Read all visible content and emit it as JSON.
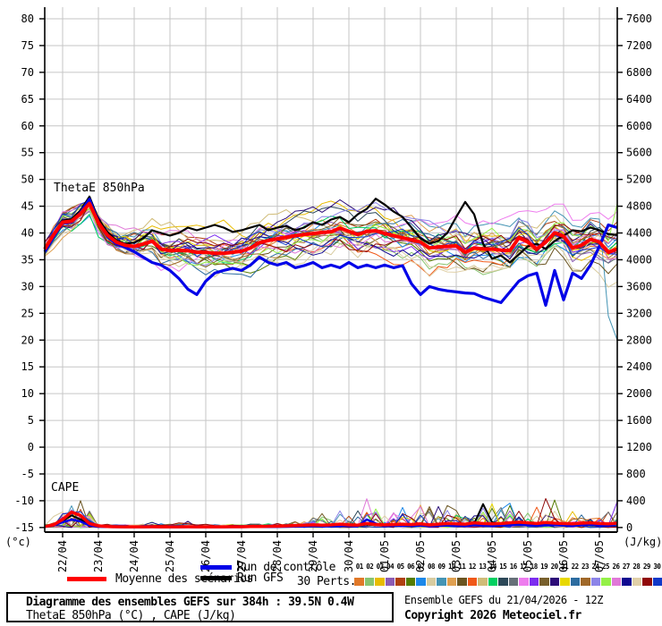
{
  "chart": {
    "thetae_label": "ThetaE 850hPa",
    "cape_label": "CAPE",
    "left_unit": "(°c)",
    "right_unit": "(J/kg)",
    "left_ticks": [
      80,
      75,
      70,
      65,
      60,
      55,
      50,
      45,
      40,
      35,
      30,
      25,
      20,
      15,
      10,
      5,
      0,
      -5,
      -10,
      -15
    ],
    "right_ticks": [
      7600,
      7200,
      6800,
      6400,
      6000,
      5600,
      5200,
      4800,
      4400,
      4000,
      3600,
      3200,
      2800,
      2400,
      2000,
      1600,
      1200,
      800,
      400,
      0
    ],
    "x_labels": [
      "22/04",
      "23/04",
      "24/04",
      "25/04",
      "26/04",
      "27/04",
      "28/04",
      "29/04",
      "30/04",
      "01/05",
      "02/05",
      "03/05",
      "04/05",
      "05/05",
      "06/05",
      "07/05"
    ]
  },
  "chart_data": {
    "type": "line",
    "x_span_hours": 384,
    "x_step_hours": 6,
    "left_axis": {
      "label": "(°c)",
      "min": -15,
      "max": 80,
      "step": 5
    },
    "right_axis": {
      "label": "(J/kg)",
      "min": 0,
      "max": 7600,
      "step": 400
    },
    "series": [
      {
        "name": "Moyenne des scénarios",
        "color": "#ff0000",
        "axis": "left",
        "values": [
          37,
          39.7,
          42,
          42.2,
          43.6,
          45.5,
          41.9,
          39.6,
          38.3,
          37.7,
          37.5,
          37.9,
          38.5,
          37,
          36.7,
          36.8,
          36.7,
          36.4,
          36.4,
          36.2,
          36.2,
          36.4,
          36.6,
          37.2,
          38.2,
          38.6,
          38.9,
          39.2,
          39.5,
          39.7,
          39.9,
          40.1,
          40.2,
          40.9,
          40.3,
          39.7,
          40.3,
          40.4,
          39.9,
          39.5,
          39.1,
          38.7,
          38.3,
          37.2,
          37.4,
          37.5,
          37.6,
          36.4,
          37.2,
          37,
          37,
          36.8,
          36.7,
          39.1,
          38.3,
          37,
          38.3,
          40,
          39.4,
          37.2,
          37.7,
          38.8,
          38.3,
          36.4,
          37
        ]
      },
      {
        "name": "Run de contrôle",
        "color": "#0000e8",
        "axis": "left",
        "values": [
          36.5,
          39.2,
          41.8,
          42,
          43.8,
          46.3,
          42,
          39.3,
          38,
          37.3,
          36.5,
          35.5,
          34.5,
          34,
          33,
          31.5,
          29.5,
          28.5,
          31,
          32.5,
          33,
          33.4,
          33,
          34,
          35.5,
          34.5,
          34,
          34.5,
          33.5,
          33.9,
          34.5,
          33.5,
          34,
          33.5,
          34.5,
          33.5,
          34,
          33.5,
          34,
          33.5,
          33.9,
          30.5,
          28.5,
          30,
          29.5,
          29.2,
          29,
          28.8,
          28.7,
          28,
          27.5,
          27,
          29,
          31,
          32,
          32.5,
          26.5,
          33,
          27.5,
          32.5,
          31.5,
          34,
          37.5,
          41.5,
          41
        ]
      },
      {
        "name": "Run GFS",
        "color": "#000000",
        "axis": "left",
        "values": [
          37.2,
          39.9,
          42.3,
          42.6,
          44.2,
          46.8,
          42.6,
          40.2,
          38.6,
          38,
          38.2,
          39,
          40.5,
          40,
          39.5,
          40,
          41,
          40.5,
          41,
          41.5,
          41,
          40.2,
          40.5,
          41,
          41.5,
          40.5,
          41,
          41.3,
          40.5,
          41,
          42,
          41.5,
          42.5,
          43,
          42,
          43.5,
          44.5,
          46.4,
          45.3,
          44,
          43,
          41,
          39,
          38,
          38.5,
          40,
          43,
          45.8,
          43.5,
          38,
          35.2,
          35.8,
          34.5,
          36,
          37.5,
          38,
          37,
          38.5,
          39.5,
          40.5,
          40.3,
          41,
          40.5,
          39.8,
          39.6
        ]
      },
      {
        "name": "CAPE Moyenne des scénarios",
        "color": "#ff0000",
        "axis": "right",
        "values": [
          15,
          40,
          120,
          230,
          180,
          60,
          25,
          15,
          12,
          10,
          10,
          10,
          12,
          10,
          10,
          10,
          12,
          10,
          10,
          10,
          10,
          12,
          12,
          15,
          15,
          18,
          20,
          25,
          30,
          35,
          40,
          35,
          40,
          50,
          40,
          35,
          60,
          45,
          40,
          45,
          50,
          45,
          55,
          40,
          50,
          60,
          55,
          50,
          70,
          60,
          55,
          60,
          70,
          80,
          70,
          60,
          75,
          65,
          60,
          55,
          65,
          70,
          60,
          55,
          65
        ]
      },
      {
        "name": "CAPE Run de contrôle",
        "color": "#0000e8",
        "axis": "right",
        "values": [
          10,
          30,
          80,
          120,
          90,
          30,
          12,
          8,
          6,
          5,
          5,
          5,
          6,
          5,
          5,
          5,
          6,
          5,
          5,
          5,
          5,
          6,
          6,
          8,
          8,
          8,
          10,
          12,
          15,
          15,
          20,
          15,
          20,
          25,
          20,
          15,
          120,
          60,
          20,
          25,
          30,
          25,
          30,
          20,
          25,
          30,
          25,
          20,
          35,
          30,
          25,
          30,
          35,
          40,
          35,
          30,
          40,
          35,
          30,
          25,
          35,
          40,
          30,
          25,
          60
        ]
      },
      {
        "name": "CAPE Run GFS",
        "color": "#000000",
        "axis": "right",
        "values": [
          12,
          35,
          100,
          180,
          120,
          40,
          15,
          10,
          8,
          6,
          6,
          6,
          8,
          6,
          6,
          6,
          8,
          6,
          6,
          6,
          6,
          8,
          8,
          10,
          10,
          12,
          15,
          18,
          20,
          25,
          30,
          25,
          30,
          40,
          30,
          25,
          45,
          35,
          30,
          35,
          40,
          35,
          45,
          30,
          40,
          45,
          40,
          35,
          55,
          350,
          80,
          45,
          55,
          60,
          55,
          45,
          60,
          50,
          45,
          40,
          50,
          55,
          45,
          40,
          50
        ]
      }
    ],
    "ensemble": {
      "count": 30,
      "colors": [
        "#e07828",
        "#88c470",
        "#e8bc00",
        "#8c5cb4",
        "#b04010",
        "#547c00",
        "#1c88e8",
        "#d8cca0",
        "#4494b4",
        "#e0a050",
        "#6a5420",
        "#f05818",
        "#d0bc78",
        "#00d060",
        "#2c4858",
        "#667078",
        "#ee7cee",
        "#7c2cf0",
        "#78602c",
        "#2c0c78",
        "#e8d800",
        "#2c6ca0",
        "#a06828",
        "#8c84e8",
        "#94f048",
        "#e078d8",
        "#100890",
        "#e0d0a8",
        "#900808",
        "#1038c8"
      ],
      "thetae_envelope_low": [
        35,
        39,
        41.5,
        39,
        36.5,
        35.5,
        34,
        31,
        29.5,
        28.5,
        28,
        28.5,
        29,
        29.5,
        30,
        29.5,
        28.5,
        28,
        27,
        27.5,
        28,
        27.5,
        27,
        26.5,
        26,
        26.5,
        26,
        27,
        26.5,
        26,
        25,
        23,
        20
      ],
      "thetae_envelope_high": [
        38.5,
        44,
        46,
        46.5,
        43.5,
        43,
        44,
        44.5,
        45,
        45,
        44.5,
        44,
        44,
        44.5,
        45.5,
        46,
        46,
        46.5,
        47,
        46.5,
        47,
        46.5,
        46,
        47,
        47.5,
        48,
        48.5,
        48,
        47,
        46.5,
        46,
        45.5,
        46
      ],
      "cape_max": [
        80,
        300,
        500,
        150,
        60,
        50,
        120,
        80,
        120,
        60,
        60,
        60,
        60,
        80,
        120,
        250,
        320,
        260,
        680,
        300,
        420,
        550,
        350,
        400,
        380,
        450,
        560,
        420,
        620,
        350,
        300,
        280,
        430
      ]
    }
  },
  "legend": {
    "mean_label": "Moyenne des scénarios",
    "control_label": "Run de contrôle",
    "gfs_label": "Run GFS",
    "perts_label": "30 Perts.",
    "pert_ids": [
      "01",
      "02",
      "03",
      "04",
      "05",
      "06",
      "07",
      "08",
      "09",
      "10",
      "11",
      "12",
      "13",
      "14",
      "15",
      "16",
      "17",
      "18",
      "19",
      "20",
      "21",
      "22",
      "23",
      "24",
      "25",
      "26",
      "27",
      "28",
      "29",
      "30"
    ]
  },
  "footer": {
    "title": "Diagramme des ensembles GEFS sur 384h : 39.5N 0.4W",
    "subtitle": "ThetaE 850hPa (°C) , CAPE (J/kg)",
    "run_info": "Ensemble GEFS du 21/04/2026 - 12Z",
    "copyright": "Copyright 2026 Meteociel.fr"
  },
  "colors": {
    "mean": "#ff0000",
    "control": "#0000e8",
    "gfs": "#000000",
    "grid": "#c6c6c6",
    "axis": "#000000"
  }
}
